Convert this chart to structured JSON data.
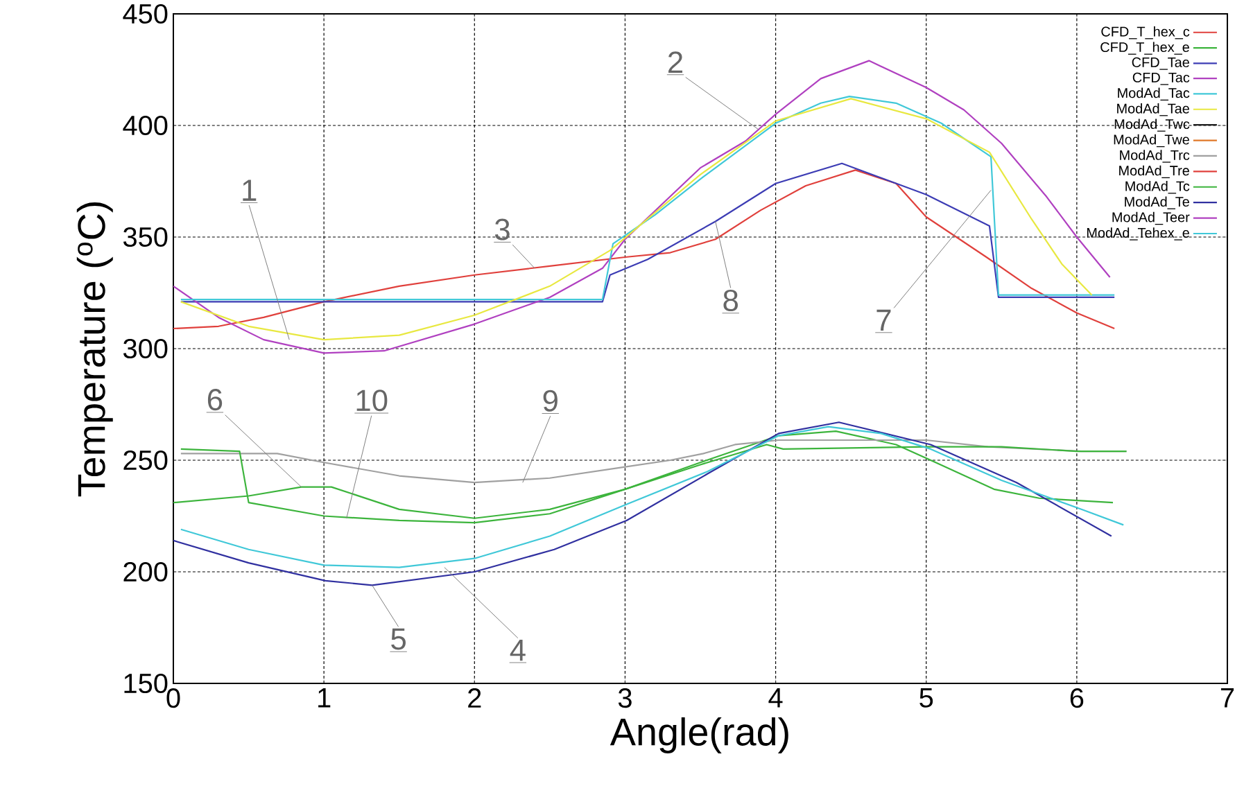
{
  "chart_data": {
    "type": "line",
    "xlabel": "Angle(rad)",
    "ylabel": "Temperature ($^{o}$C)",
    "xlim": [
      0,
      7
    ],
    "ylim": [
      150,
      450
    ],
    "xticks": [
      0,
      1,
      2,
      3,
      4,
      5,
      6,
      7
    ],
    "yticks": [
      150,
      200,
      250,
      300,
      350,
      400,
      450
    ],
    "grid": true,
    "legend": "top right",
    "series": [
      {
        "name": "CFD_T_hex_c",
        "color": "#e0403c",
        "x": [
          0,
          0.3,
          0.6,
          1,
          1.5,
          2,
          2.5,
          3,
          3.3,
          3.6,
          3.9,
          4.2,
          4.53,
          4.8,
          5.0,
          5.4,
          5.7,
          6.0,
          6.25
        ],
        "values": [
          309,
          310,
          314,
          321,
          328,
          333,
          337,
          341,
          343,
          349,
          362,
          373,
          380,
          374,
          359,
          341,
          327,
          316,
          309
        ]
      },
      {
        "name": "CFD_T_hex_e",
        "color": "#3cb43c",
        "x": [
          0,
          0.5,
          0.85,
          1.05,
          1.5,
          2,
          2.5,
          3,
          3.5,
          4.02,
          4.4,
          4.8,
          5.03,
          5.45,
          5.75,
          6.24
        ],
        "values": [
          231,
          234,
          238,
          238,
          228,
          224,
          228,
          237,
          249,
          261,
          263,
          257,
          250,
          237,
          233,
          231
        ]
      },
      {
        "name": "CFD_Tae",
        "color": "#3c3cb4",
        "x": [
          0.05,
          2.85,
          2.9,
          3.15,
          3.6,
          4.0,
          4.44,
          5.0,
          5.42,
          5.48,
          6.25
        ],
        "values": [
          321,
          321,
          333,
          340,
          357,
          374,
          383,
          369,
          355,
          323,
          323
        ]
      },
      {
        "name": "CFD_Tac",
        "color": "#b040c0",
        "x": [
          0,
          0.3,
          0.6,
          1.0,
          1.4,
          2,
          2.5,
          2.85,
          3,
          3.5,
          3.8,
          4,
          4.3,
          4.62,
          5.0,
          5.25,
          5.5,
          5.8,
          6.0,
          6.22
        ],
        "values": [
          328,
          314,
          304,
          298,
          299,
          311,
          323,
          336,
          349,
          381,
          393,
          405,
          421,
          429,
          417,
          407,
          392,
          368,
          350,
          332
        ]
      },
      {
        "name": "ModAd_Tac",
        "color": "#40c8d8",
        "x": [
          0.05,
          2.85,
          2.92,
          3.2,
          3.5,
          4,
          4.3,
          4.49,
          4.8,
          5.1,
          5.43,
          5.48,
          6.25
        ],
        "values": [
          322,
          322,
          347,
          360,
          376,
          401,
          410,
          413,
          410,
          401,
          386,
          324,
          324
        ]
      },
      {
        "name": "ModAd_Tae",
        "color": "#e8e840",
        "x": [
          0.05,
          0.5,
          1.0,
          1.5,
          2,
          2.5,
          2.9,
          3.5,
          4,
          4.5,
          5,
          5.42,
          5.7,
          5.9,
          6.1
        ],
        "values": [
          321,
          310,
          304,
          306,
          315,
          328,
          344,
          378,
          402,
          412,
          403,
          388,
          358,
          338,
          324
        ]
      },
      {
        "name": "ModAd_Twc",
        "color": "#202020"
      },
      {
        "name": "ModAd_Twe",
        "color": "#e07828"
      },
      {
        "name": "ModAd_Trc",
        "color": "#a0a0a0",
        "x": [
          0.05,
          0.69,
          1.0,
          1.5,
          2,
          2.5,
          3,
          3.3,
          3.52,
          3.73,
          4.02,
          5,
          5.41,
          6.03,
          6.33
        ],
        "values": [
          253,
          253,
          249,
          243,
          240,
          242,
          247,
          250,
          253,
          257,
          259,
          259,
          256,
          254,
          254
        ]
      },
      {
        "name": "ModAd_Tre",
        "color": "#e0403c"
      },
      {
        "name": "ModAd_Tc",
        "color": "#3cb43c",
        "x": [
          0.05,
          0.44,
          0.5,
          1.0,
          1.5,
          2,
          2.5,
          3,
          3.5,
          3.94,
          4.05,
          5,
          5.5,
          6.0,
          6.33
        ],
        "values": [
          255,
          254,
          231,
          225,
          223,
          222,
          226,
          237,
          248,
          257,
          255,
          256,
          256,
          254,
          254
        ]
      },
      {
        "name": "ModAd_Te",
        "color": "#3030a0",
        "x": [
          0,
          0.5,
          1.01,
          1.32,
          2,
          2.53,
          3.01,
          3.55,
          4.02,
          4.42,
          5.03,
          5.6,
          6.23
        ],
        "values": [
          214,
          204,
          196,
          194,
          200,
          210,
          223,
          244,
          262,
          267,
          257,
          240,
          216
        ]
      },
      {
        "name": "ModAd_Teer",
        "color": "#b040c0"
      },
      {
        "name": "ModAd_Tehex_e",
        "color": "#40c8d8",
        "x": [
          0.05,
          0.5,
          1.0,
          1.5,
          2,
          2.5,
          3,
          3.55,
          4.02,
          4.35,
          4.7,
          5.03,
          5.5,
          6.03,
          6.31
        ],
        "values": [
          219,
          210,
          203,
          202,
          206,
          216,
          230,
          245,
          261,
          265,
          262,
          255,
          241,
          228,
          221
        ]
      }
    ],
    "annotations": [
      {
        "text": "1",
        "x": 0.77,
        "y": 304
      },
      {
        "text": "2",
        "x": 3.89,
        "y": 398
      },
      {
        "text": "3",
        "x": 2.4,
        "y": 336
      },
      {
        "text": "4",
        "x": 1.8,
        "y": 202
      },
      {
        "text": "5",
        "x": 1.32,
        "y": 194
      },
      {
        "text": "6",
        "x": 0.85,
        "y": 238
      },
      {
        "text": "7",
        "x": 5.43,
        "y": 371
      },
      {
        "text": "8",
        "x": 3.6,
        "y": 357
      },
      {
        "text": "9",
        "x": 2.32,
        "y": 240
      },
      {
        "text": "10",
        "x": 1.15,
        "y": 224
      }
    ]
  }
}
